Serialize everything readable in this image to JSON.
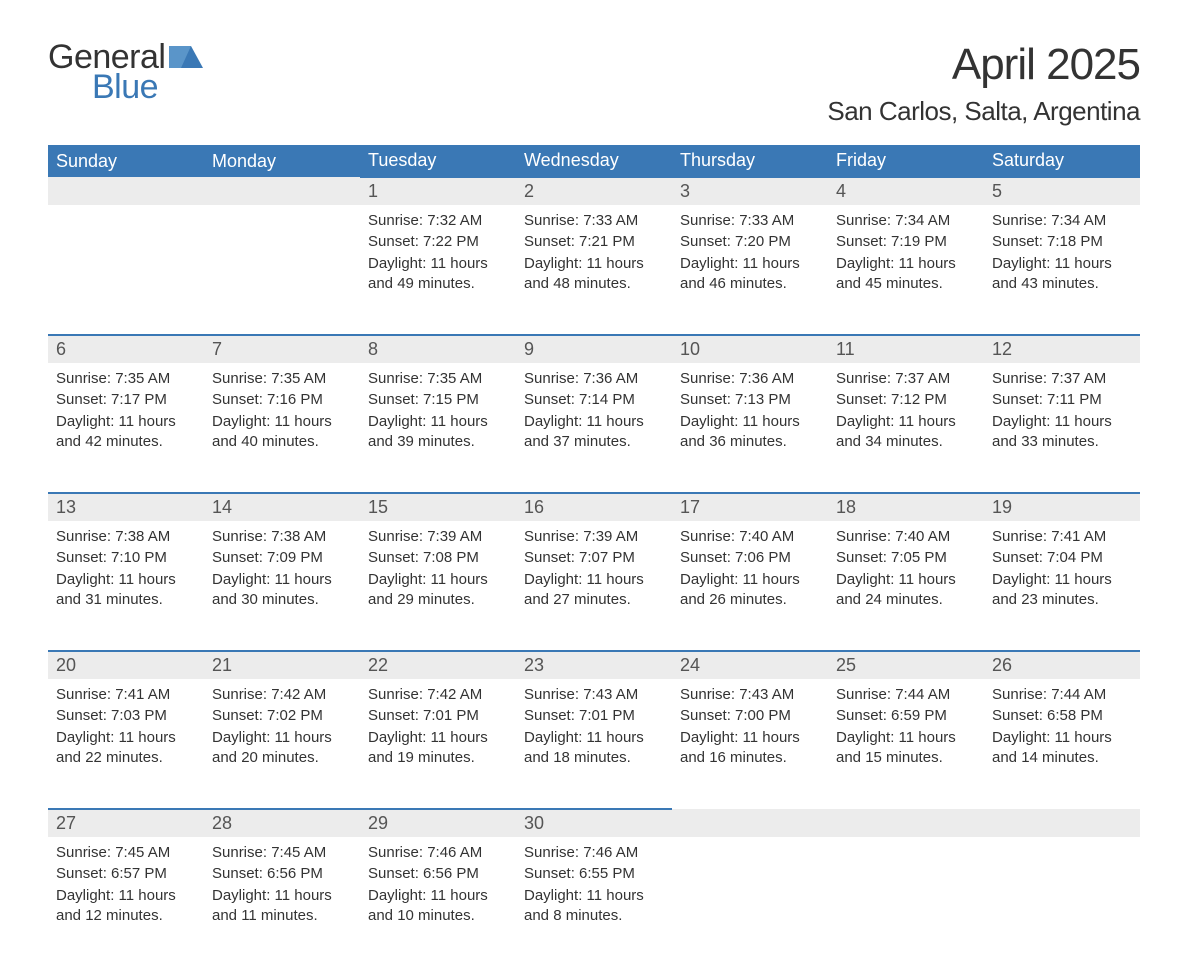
{
  "brand": {
    "part1": "General",
    "part2": "Blue",
    "accent_color": "#3a78b5"
  },
  "title": "April 2025",
  "subtitle": "San Carlos, Salta, Argentina",
  "colors": {
    "header_bg": "#3a78b5",
    "header_text": "#ffffff",
    "daynum_bg": "#ececec",
    "daynum_border": "#3a78b5",
    "text": "#333333",
    "page_bg": "#ffffff"
  },
  "weekdays": [
    "Sunday",
    "Monday",
    "Tuesday",
    "Wednesday",
    "Thursday",
    "Friday",
    "Saturday"
  ],
  "calendar": {
    "rows": 5,
    "cols": 7,
    "first_day_col": 2,
    "days": [
      {
        "n": 1,
        "sunrise": "7:32 AM",
        "sunset": "7:22 PM",
        "daylight": "11 hours and 49 minutes."
      },
      {
        "n": 2,
        "sunrise": "7:33 AM",
        "sunset": "7:21 PM",
        "daylight": "11 hours and 48 minutes."
      },
      {
        "n": 3,
        "sunrise": "7:33 AM",
        "sunset": "7:20 PM",
        "daylight": "11 hours and 46 minutes."
      },
      {
        "n": 4,
        "sunrise": "7:34 AM",
        "sunset": "7:19 PM",
        "daylight": "11 hours and 45 minutes."
      },
      {
        "n": 5,
        "sunrise": "7:34 AM",
        "sunset": "7:18 PM",
        "daylight": "11 hours and 43 minutes."
      },
      {
        "n": 6,
        "sunrise": "7:35 AM",
        "sunset": "7:17 PM",
        "daylight": "11 hours and 42 minutes."
      },
      {
        "n": 7,
        "sunrise": "7:35 AM",
        "sunset": "7:16 PM",
        "daylight": "11 hours and 40 minutes."
      },
      {
        "n": 8,
        "sunrise": "7:35 AM",
        "sunset": "7:15 PM",
        "daylight": "11 hours and 39 minutes."
      },
      {
        "n": 9,
        "sunrise": "7:36 AM",
        "sunset": "7:14 PM",
        "daylight": "11 hours and 37 minutes."
      },
      {
        "n": 10,
        "sunrise": "7:36 AM",
        "sunset": "7:13 PM",
        "daylight": "11 hours and 36 minutes."
      },
      {
        "n": 11,
        "sunrise": "7:37 AM",
        "sunset": "7:12 PM",
        "daylight": "11 hours and 34 minutes."
      },
      {
        "n": 12,
        "sunrise": "7:37 AM",
        "sunset": "7:11 PM",
        "daylight": "11 hours and 33 minutes."
      },
      {
        "n": 13,
        "sunrise": "7:38 AM",
        "sunset": "7:10 PM",
        "daylight": "11 hours and 31 minutes."
      },
      {
        "n": 14,
        "sunrise": "7:38 AM",
        "sunset": "7:09 PM",
        "daylight": "11 hours and 30 minutes."
      },
      {
        "n": 15,
        "sunrise": "7:39 AM",
        "sunset": "7:08 PM",
        "daylight": "11 hours and 29 minutes."
      },
      {
        "n": 16,
        "sunrise": "7:39 AM",
        "sunset": "7:07 PM",
        "daylight": "11 hours and 27 minutes."
      },
      {
        "n": 17,
        "sunrise": "7:40 AM",
        "sunset": "7:06 PM",
        "daylight": "11 hours and 26 minutes."
      },
      {
        "n": 18,
        "sunrise": "7:40 AM",
        "sunset": "7:05 PM",
        "daylight": "11 hours and 24 minutes."
      },
      {
        "n": 19,
        "sunrise": "7:41 AM",
        "sunset": "7:04 PM",
        "daylight": "11 hours and 23 minutes."
      },
      {
        "n": 20,
        "sunrise": "7:41 AM",
        "sunset": "7:03 PM",
        "daylight": "11 hours and 22 minutes."
      },
      {
        "n": 21,
        "sunrise": "7:42 AM",
        "sunset": "7:02 PM",
        "daylight": "11 hours and 20 minutes."
      },
      {
        "n": 22,
        "sunrise": "7:42 AM",
        "sunset": "7:01 PM",
        "daylight": "11 hours and 19 minutes."
      },
      {
        "n": 23,
        "sunrise": "7:43 AM",
        "sunset": "7:01 PM",
        "daylight": "11 hours and 18 minutes."
      },
      {
        "n": 24,
        "sunrise": "7:43 AM",
        "sunset": "7:00 PM",
        "daylight": "11 hours and 16 minutes."
      },
      {
        "n": 25,
        "sunrise": "7:44 AM",
        "sunset": "6:59 PM",
        "daylight": "11 hours and 15 minutes."
      },
      {
        "n": 26,
        "sunrise": "7:44 AM",
        "sunset": "6:58 PM",
        "daylight": "11 hours and 14 minutes."
      },
      {
        "n": 27,
        "sunrise": "7:45 AM",
        "sunset": "6:57 PM",
        "daylight": "11 hours and 12 minutes."
      },
      {
        "n": 28,
        "sunrise": "7:45 AM",
        "sunset": "6:56 PM",
        "daylight": "11 hours and 11 minutes."
      },
      {
        "n": 29,
        "sunrise": "7:46 AM",
        "sunset": "6:56 PM",
        "daylight": "11 hours and 10 minutes."
      },
      {
        "n": 30,
        "sunrise": "7:46 AM",
        "sunset": "6:55 PM",
        "daylight": "11 hours and 8 minutes."
      }
    ]
  },
  "labels": {
    "sunrise_prefix": "Sunrise: ",
    "sunset_prefix": "Sunset: ",
    "daylight_prefix": "Daylight: "
  },
  "typography": {
    "title_fontsize": 44,
    "subtitle_fontsize": 26,
    "weekday_fontsize": 18,
    "daynum_fontsize": 18,
    "body_fontsize": 15
  }
}
